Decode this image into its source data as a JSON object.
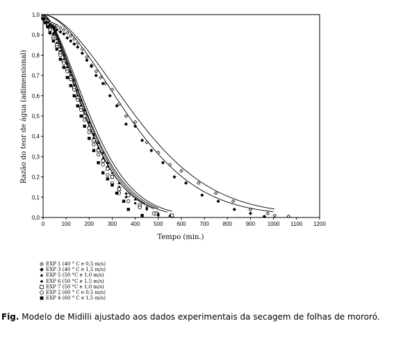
{
  "chart_data": {
    "type": "scatter",
    "title": "",
    "xlabel": "Tempo (min.)",
    "ylabel": "Razão do teor de água (adimensional)",
    "xlim": [
      0,
      1200
    ],
    "ylim": [
      0,
      1.0
    ],
    "xticks": [
      "0",
      "100",
      "200",
      "300",
      "400",
      "500",
      "600",
      "700",
      "800",
      "900",
      "1000",
      "1100",
      "1200"
    ],
    "yticks": [
      "0,0",
      "0,1",
      "0,2",
      "0,3",
      "0,4",
      "0,5",
      "0,6",
      "0,7",
      "0,8",
      "0,9",
      "1,0"
    ],
    "grid": false,
    "legend_position": "bottom-left",
    "series": [
      {
        "name": "EXP 1 (40 ° C e 0,5 m/s)",
        "marker": "diamond-open",
        "x": [
          0,
          10,
          20,
          30,
          40,
          50,
          60,
          75,
          90,
          105,
          120,
          135,
          150,
          170,
          190,
          210,
          230,
          250,
          270,
          300,
          330,
          360,
          400,
          450,
          500,
          550,
          600,
          675,
          750,
          825,
          900,
          975,
          1005,
          1065
        ],
        "y": [
          0.995,
          0.985,
          0.97,
          0.96,
          0.955,
          0.95,
          0.945,
          0.935,
          0.925,
          0.91,
          0.895,
          0.88,
          0.86,
          0.83,
          0.79,
          0.75,
          0.72,
          0.69,
          0.66,
          0.63,
          0.56,
          0.5,
          0.47,
          0.37,
          0.32,
          0.26,
          0.23,
          0.17,
          0.12,
          0.08,
          0.04,
          0.02,
          0.01,
          0.005
        ],
        "fit": {
          "model": "Midilli",
          "a": 1.0,
          "k": 1.95e-05,
          "n": 1.75,
          "b": 1.13e-05,
          "tmax": 1005
        }
      },
      {
        "name": "EXP 3 (40 ° C e 1,5 m/s)",
        "marker": "diamond-filled",
        "x": [
          0,
          10,
          20,
          30,
          40,
          50,
          60,
          75,
          90,
          105,
          120,
          135,
          150,
          170,
          190,
          210,
          230,
          260,
          290,
          320,
          360,
          400,
          430,
          470,
          520,
          570,
          620,
          690,
          760,
          830,
          900,
          960
        ],
        "y": [
          0.99,
          0.975,
          0.96,
          0.95,
          0.94,
          0.935,
          0.925,
          0.915,
          0.905,
          0.885,
          0.87,
          0.855,
          0.84,
          0.81,
          0.775,
          0.745,
          0.7,
          0.66,
          0.6,
          0.55,
          0.46,
          0.45,
          0.38,
          0.33,
          0.27,
          0.2,
          0.17,
          0.11,
          0.08,
          0.04,
          0.02,
          0.005
        ],
        "fit": {
          "model": "Midilli",
          "a": 1.0,
          "k": 2.23e-05,
          "n": 1.75,
          "b": 9.5e-06,
          "tmax": 1000
        }
      },
      {
        "name": "EXP 5 (50 °C e 1,0 m/s)",
        "marker": "triangle-filled",
        "x": [
          0,
          10,
          20,
          30,
          45,
          60,
          75,
          90,
          105,
          120,
          135,
          150,
          165,
          180,
          200,
          220,
          240,
          260,
          280,
          300,
          330,
          360,
          400,
          450,
          500,
          550
        ],
        "y": [
          0.99,
          0.98,
          0.96,
          0.94,
          0.91,
          0.88,
          0.84,
          0.8,
          0.76,
          0.72,
          0.68,
          0.63,
          0.58,
          0.53,
          0.47,
          0.41,
          0.37,
          0.32,
          0.27,
          0.22,
          0.17,
          0.12,
          0.09,
          0.05,
          0.02,
          0.01
        ],
        "fit": {
          "model": "Midilli",
          "a": 1.0,
          "k": 0.000126,
          "n": 1.62,
          "b": 3.8e-06,
          "tmax": 560
        }
      },
      {
        "name": "EXP 6 (50 °C e 1,5 m/s)",
        "marker": "circle-small",
        "x": [
          0,
          10,
          20,
          30,
          45,
          60,
          75,
          90,
          105,
          120,
          135,
          150,
          165,
          180,
          200,
          220,
          240,
          260,
          280,
          300,
          330,
          360,
          400,
          450,
          500
        ],
        "y": [
          0.985,
          0.975,
          0.955,
          0.93,
          0.9,
          0.86,
          0.82,
          0.78,
          0.74,
          0.7,
          0.65,
          0.6,
          0.55,
          0.5,
          0.44,
          0.39,
          0.34,
          0.29,
          0.25,
          0.2,
          0.15,
          0.1,
          0.07,
          0.04,
          0.01
        ],
        "fit": {
          "model": "Midilli",
          "a": 1.0,
          "k": 0.000139,
          "n": 1.62,
          "b": 3.5e-06,
          "tmax": 540
        }
      },
      {
        "name": "EXP 7 (50 °C e 1,0 m/s)",
        "marker": "square-open",
        "x": [
          0,
          10,
          20,
          30,
          45,
          60,
          75,
          90,
          105,
          120,
          135,
          150,
          165,
          180,
          200,
          220,
          240,
          260,
          280,
          300,
          330,
          370,
          420,
          490,
          560
        ],
        "y": [
          0.985,
          0.97,
          0.95,
          0.93,
          0.89,
          0.85,
          0.81,
          0.77,
          0.73,
          0.69,
          0.64,
          0.59,
          0.54,
          0.5,
          0.44,
          0.38,
          0.33,
          0.28,
          0.24,
          0.2,
          0.14,
          0.11,
          0.06,
          0.02,
          0.01
        ],
        "fit": {
          "model": "Midilli",
          "a": 1.0,
          "k": 0.00015,
          "n": 1.6,
          "b": 3.5e-06,
          "tmax": 500
        }
      },
      {
        "name": "EXP 2 (60 ° C e 0,5 m/s)",
        "marker": "circle-open",
        "x": [
          0,
          10,
          20,
          30,
          45,
          60,
          75,
          90,
          105,
          120,
          135,
          150,
          165,
          180,
          200,
          220,
          240,
          260,
          280,
          300,
          330,
          370,
          420,
          480
        ],
        "y": [
          0.98,
          0.965,
          0.945,
          0.925,
          0.88,
          0.84,
          0.8,
          0.76,
          0.72,
          0.68,
          0.63,
          0.58,
          0.53,
          0.48,
          0.42,
          0.36,
          0.31,
          0.26,
          0.21,
          0.17,
          0.12,
          0.08,
          0.05,
          0.02
        ],
        "fit": {
          "model": "Midilli",
          "a": 1.0,
          "k": 0.000163,
          "n": 1.6,
          "b": 3.5e-06,
          "tmax": 480
        }
      },
      {
        "name": "EXP 4 (60 ° C e 1,5 m/s)",
        "marker": "square-filled",
        "x": [
          0,
          10,
          20,
          30,
          45,
          60,
          75,
          90,
          105,
          120,
          135,
          150,
          165,
          180,
          200,
          220,
          240,
          260,
          280,
          300,
          320,
          350,
          370,
          430
        ],
        "y": [
          0.98,
          0.96,
          0.94,
          0.91,
          0.87,
          0.83,
          0.78,
          0.74,
          0.69,
          0.65,
          0.6,
          0.55,
          0.5,
          0.45,
          0.39,
          0.33,
          0.27,
          0.22,
          0.19,
          0.16,
          0.12,
          0.08,
          0.04,
          0.01
        ],
        "fit": {
          "model": "Midilli",
          "a": 1.0,
          "k": 0.000218,
          "n": 1.55,
          "b": 3.5e-06,
          "tmax": 440
        }
      }
    ]
  },
  "caption": {
    "label": "Fig.",
    "text": " Modelo de Midilli ajustado aos dados experimentais da secagem de folhas de mororó."
  }
}
